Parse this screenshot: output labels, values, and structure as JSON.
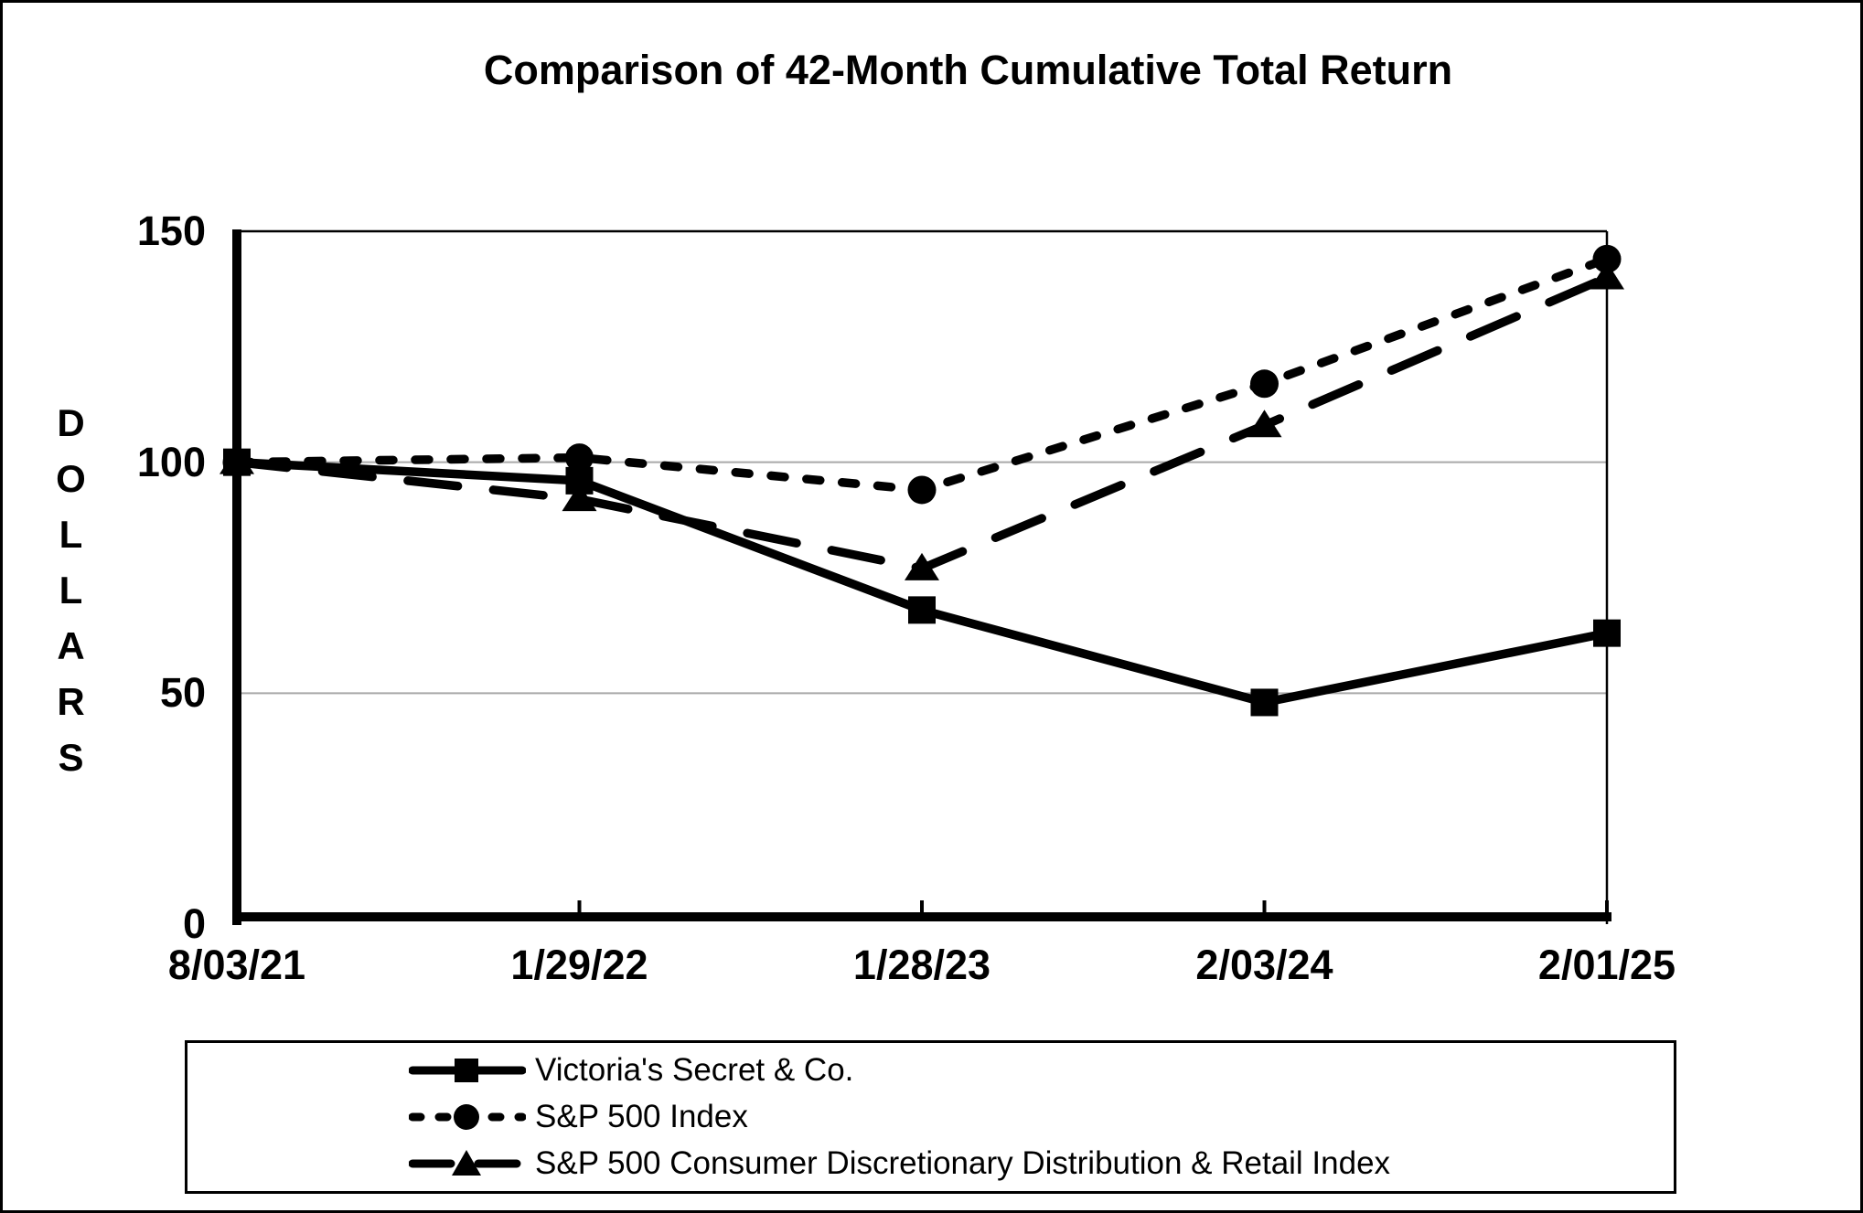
{
  "chart_data": {
    "type": "line",
    "title": "Comparison of 42-Month Cumulative Total Return",
    "ylabel": "DOLLARS",
    "xlabel": "",
    "categories": [
      "8/03/21",
      "1/29/22",
      "1/28/23",
      "2/03/24",
      "2/01/25"
    ],
    "y_ticks": [
      0,
      50,
      100,
      150
    ],
    "ylim": [
      0,
      150
    ],
    "grid": "horizontal-gridlines-at-50-and-100",
    "legend_position": "bottom-box",
    "series": [
      {
        "name": "Victoria's Secret & Co.",
        "marker": "square",
        "line_style": "solid",
        "values": [
          100,
          96,
          68,
          48,
          63
        ]
      },
      {
        "name": "S&P 500 Index",
        "marker": "circle",
        "line_style": "dotted",
        "values": [
          100,
          101,
          94,
          117,
          144
        ]
      },
      {
        "name": "S&P 500 Consumer Discretionary Distribution & Retail Index",
        "marker": "triangle",
        "line_style": "dashed",
        "values": [
          100,
          92,
          77,
          108,
          140
        ]
      }
    ],
    "colors": {
      "series": "#000000",
      "gridline": "#a9a9a9",
      "background": "#ffffff",
      "frame": "#000000"
    }
  }
}
